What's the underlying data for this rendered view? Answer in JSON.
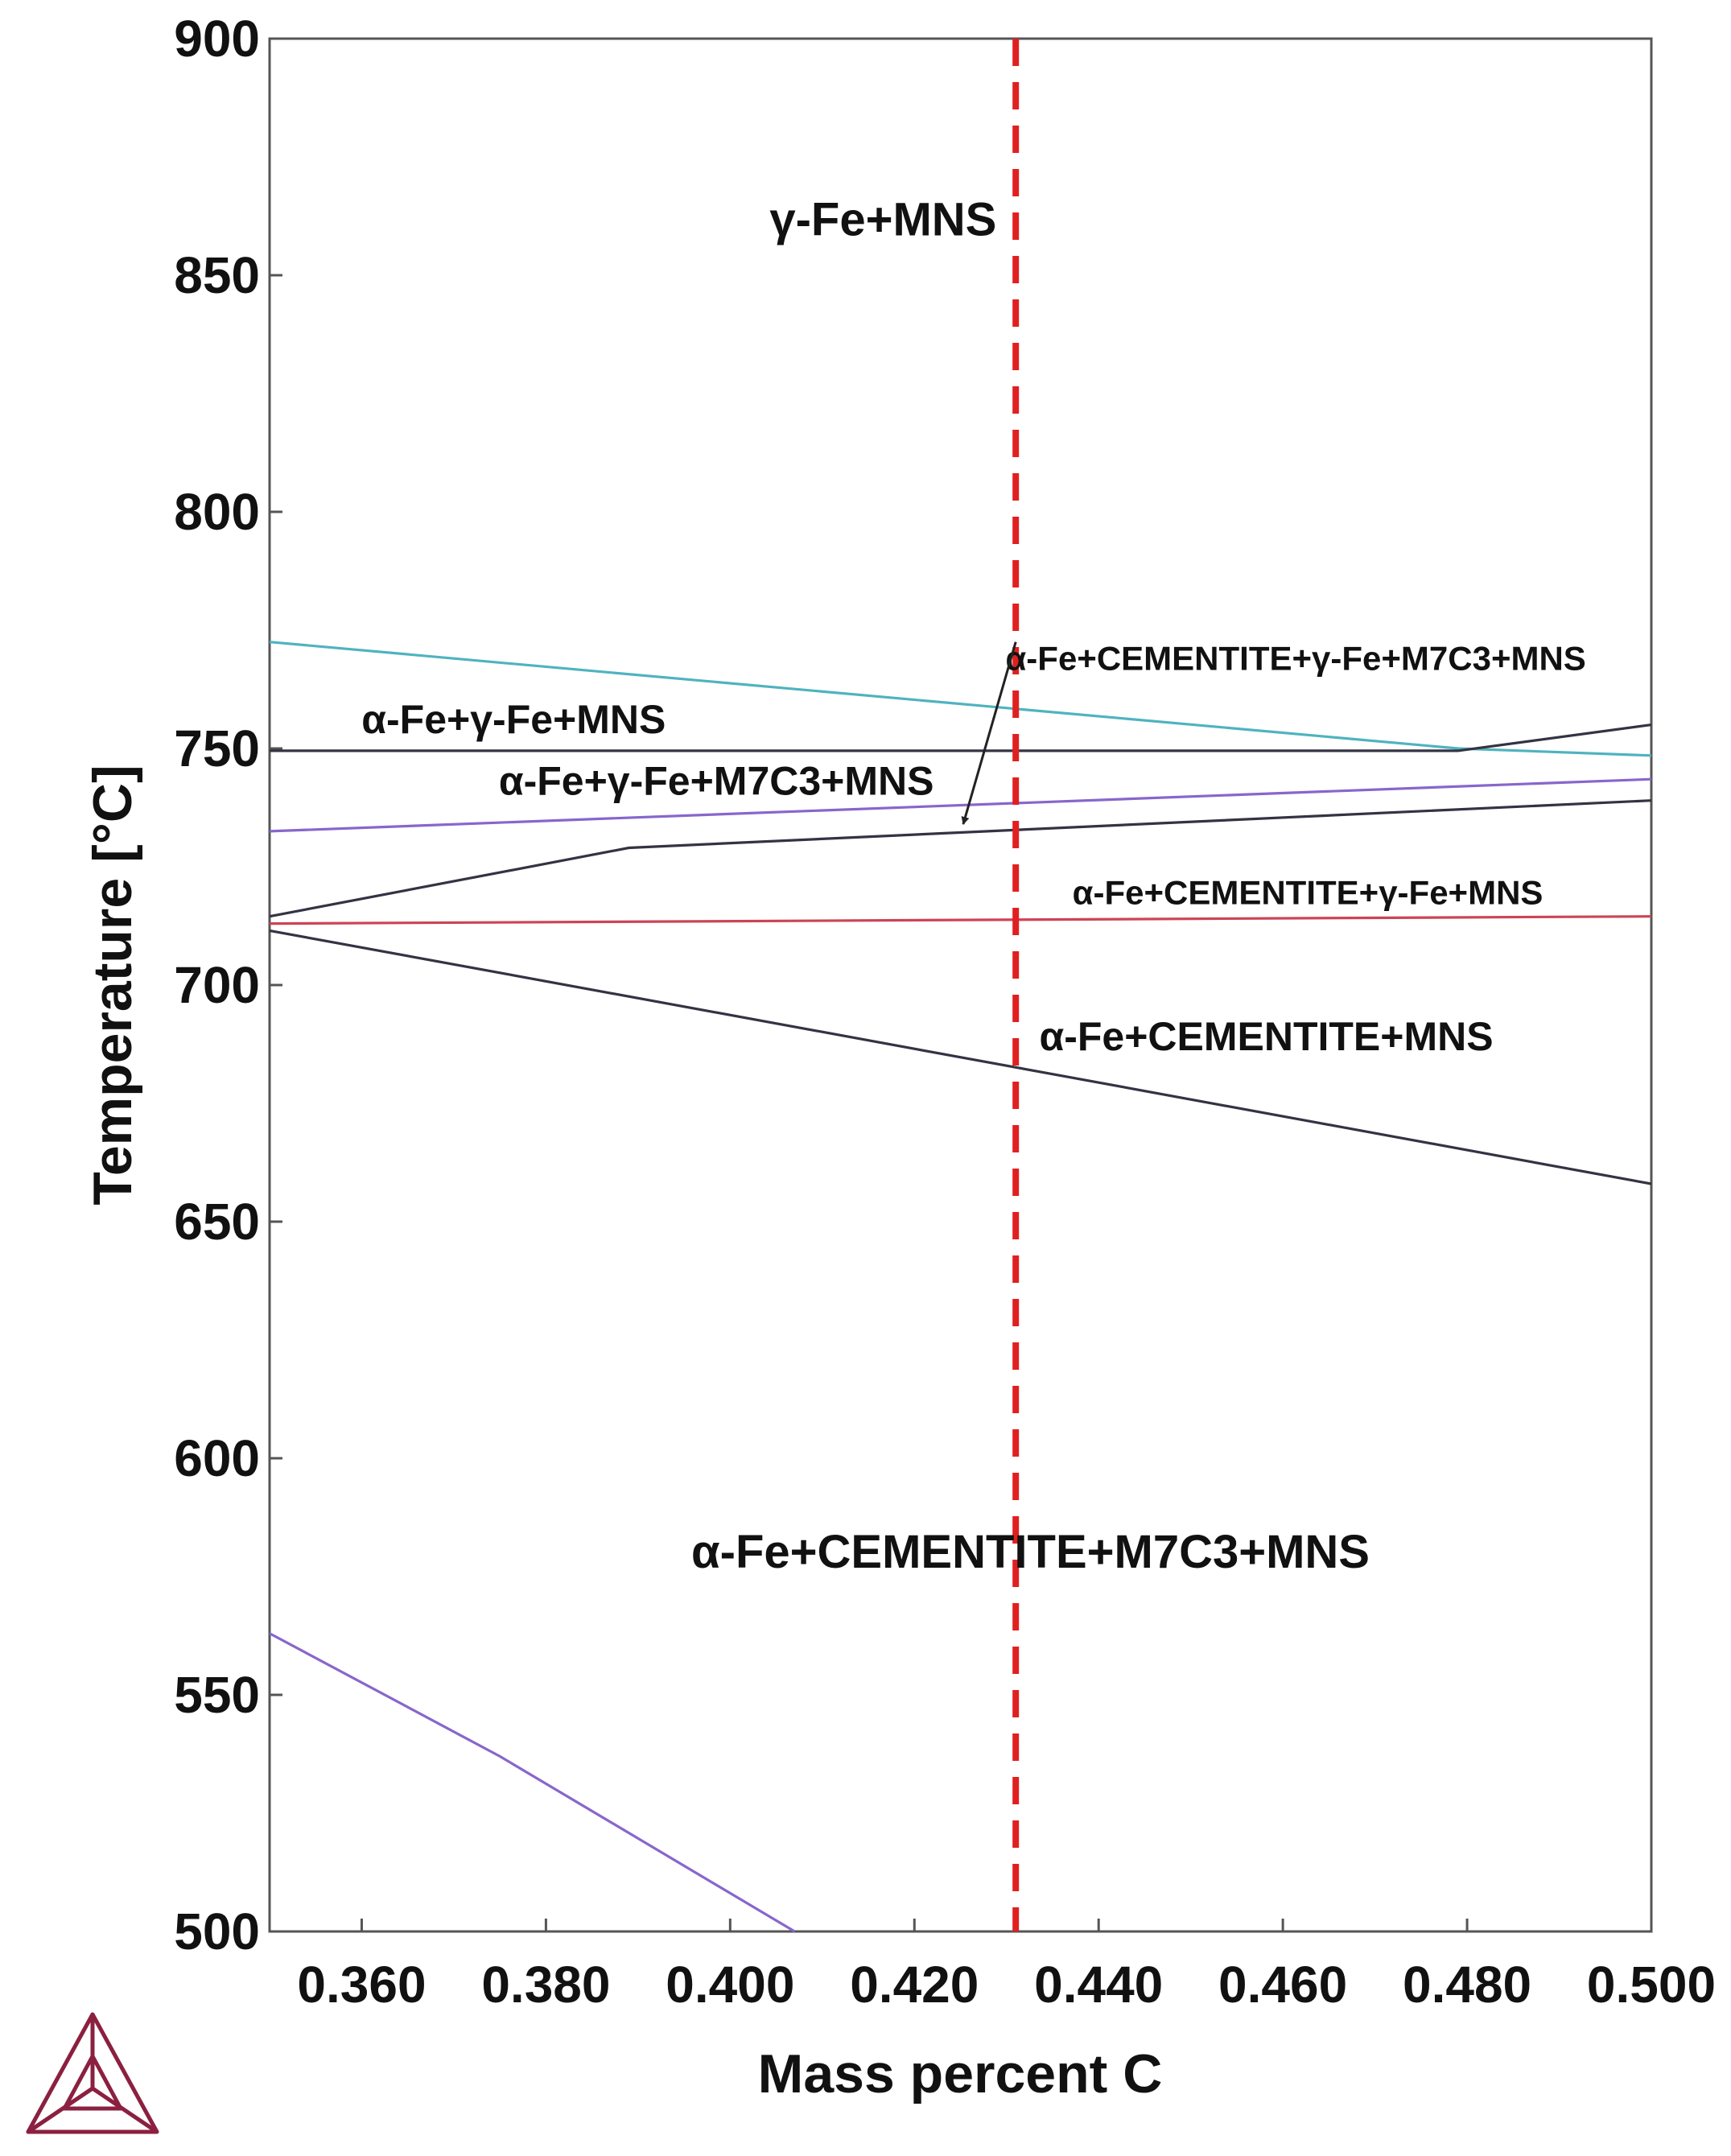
{
  "chart_data": {
    "type": "line",
    "title": "",
    "xlabel": "Mass percent C",
    "ylabel": "Temperature [°C]",
    "xlim": [
      0.35,
      0.5
    ],
    "ylim": [
      500,
      900
    ],
    "x_ticks": [
      0.36,
      0.38,
      0.4,
      0.42,
      0.44,
      0.46,
      0.48,
      0.5
    ],
    "x_tick_labels": [
      "0.360",
      "0.380",
      "0.400",
      "0.420",
      "0.440",
      "0.460",
      "0.480",
      "0.500"
    ],
    "y_ticks": [
      500,
      550,
      600,
      650,
      700,
      750,
      800,
      850,
      900
    ],
    "y_tick_labels": [
      "500",
      "550",
      "600",
      "650",
      "700",
      "750",
      "800",
      "850",
      "900"
    ],
    "grid": false,
    "legend": "none",
    "series": [
      {
        "color": "#4fb3bf",
        "x": [
          0.35,
          0.479,
          0.5
        ],
        "y": [
          772.5,
          750,
          748.5
        ]
      },
      {
        "color": "#333344",
        "x": [
          0.35,
          0.479,
          0.5
        ],
        "y": [
          749.5,
          749.5,
          755
        ]
      },
      {
        "color": "#8866cc",
        "x": [
          0.35,
          0.5
        ],
        "y": [
          732.5,
          743.5
        ]
      },
      {
        "color": "#333344",
        "x": [
          0.35,
          0.389,
          0.5
        ],
        "y": [
          714.5,
          729,
          739
        ]
      },
      {
        "color": "#cc4455",
        "x": [
          0.35,
          0.5
        ],
        "y": [
          713,
          714.5
        ]
      },
      {
        "color": "#333344",
        "x": [
          0.35,
          0.5
        ],
        "y": [
          711.5,
          658
        ]
      },
      {
        "color": "#8866cc",
        "x": [
          0.35,
          0.375,
          0.407
        ],
        "y": [
          563,
          537,
          500
        ]
      }
    ],
    "reference_line": {
      "x": 0.431,
      "color": "#e02020",
      "style": "dashed"
    },
    "annotations": [
      {
        "text": "γ-Fe+MNS",
        "x": 0.4166,
        "y": 861,
        "size": "large"
      },
      {
        "text": "α-Fe+CEMENTITE+γ-Fe+M7C3+MNS",
        "x": 0.4614,
        "y": 768.5,
        "size": "small"
      },
      {
        "text": "α-Fe+γ-Fe+MNS",
        "x": 0.3765,
        "y": 755.5,
        "size": "medium"
      },
      {
        "text": "α-Fe+γ-Fe+M7C3+MNS",
        "x": 0.3985,
        "y": 742.5,
        "size": "medium"
      },
      {
        "text": "α-Fe+CEMENTITE+γ-Fe+MNS",
        "x": 0.4627,
        "y": 719,
        "size": "small"
      },
      {
        "text": "α-Fe+CEMENTITE+MNS",
        "x": 0.4582,
        "y": 688.5,
        "size": "medium"
      },
      {
        "text": "α-Fe+CEMENTITE+M7C3+MNS",
        "x": 0.4326,
        "y": 579.5,
        "size": "large"
      }
    ],
    "arrow": {
      "from": [
        0.431,
        772.5
      ],
      "to": [
        0.4253,
        734
      ]
    }
  },
  "logo": {
    "name": "thermo-calc-logo-icon",
    "color": "#8b2040"
  }
}
